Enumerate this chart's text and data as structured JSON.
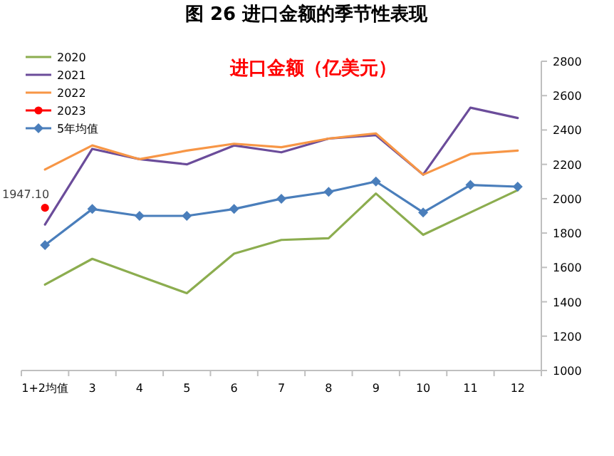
{
  "chart_data": {
    "type": "line",
    "title": "图 26   进口金额的季节性表现",
    "subtitle": "进口金额（亿美元）",
    "categories": [
      "1+2均值",
      "3",
      "4",
      "5",
      "6",
      "7",
      "8",
      "9",
      "10",
      "11",
      "12"
    ],
    "series": [
      {
        "name": "2020",
        "color": "#8cad4f",
        "values": [
          1500,
          1650,
          1550,
          1450,
          1680,
          1760,
          1770,
          2030,
          1790,
          1920,
          2050
        ]
      },
      {
        "name": "2021",
        "color": "#6b4c9a",
        "values": [
          1850,
          2290,
          2230,
          2200,
          2310,
          2270,
          2350,
          2370,
          2140,
          2530,
          2470
        ]
      },
      {
        "name": "2022",
        "color": "#f79646",
        "values": [
          2170,
          2310,
          2230,
          2280,
          2320,
          2300,
          2350,
          2380,
          2140,
          2260,
          2280
        ]
      },
      {
        "name": "2023",
        "color": "#ff0000",
        "marker": "circle",
        "values": [
          1947.1,
          null,
          null,
          null,
          null,
          null,
          null,
          null,
          null,
          null,
          null
        ],
        "value_labels": [
          "1947.10",
          null,
          null,
          null,
          null,
          null,
          null,
          null,
          null,
          null,
          null
        ]
      },
      {
        "name": "5年均值",
        "color": "#4a7ebb",
        "marker": "diamond",
        "values": [
          1730,
          1940,
          1900,
          1900,
          1940,
          2000,
          2040,
          2100,
          1920,
          2080,
          2070
        ]
      }
    ],
    "ylim": [
      1000,
      2800
    ],
    "yticks": [
      1000,
      1200,
      1400,
      1600,
      1800,
      2000,
      2200,
      2400,
      2600,
      2800
    ],
    "grid": false,
    "legend": "top left"
  }
}
